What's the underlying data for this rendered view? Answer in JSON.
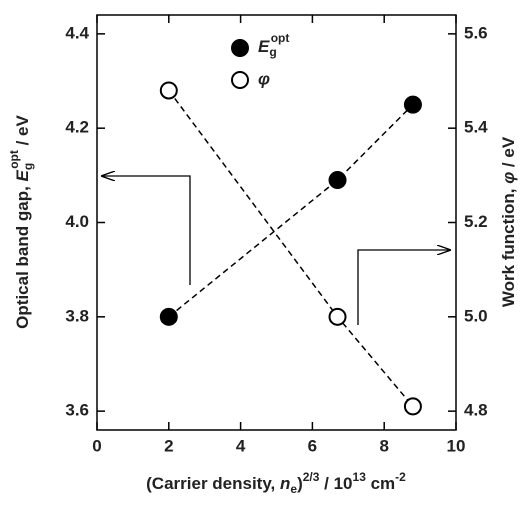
{
  "chart_data": {
    "type": "scatter",
    "xlabel": [
      "(Carrier density, ",
      "n",
      "e",
      ")",
      "2/3",
      " / 10",
      "13",
      " cm",
      "-2"
    ],
    "ylabel": [
      "Optical band gap, ",
      "E",
      "g",
      "opt",
      " / eV"
    ],
    "y2label": [
      "Work function, ",
      "φ",
      " / eV"
    ],
    "x": [
      2,
      6.7,
      8.8
    ],
    "series": [
      {
        "name": "E",
        "name_sub": "g",
        "name_sup": "opt",
        "color": "#000000",
        "filled": true,
        "values": [
          3.8,
          4.09,
          4.25
        ]
      },
      {
        "name": "φ",
        "color": "#000000",
        "filled": false,
        "axis": "y2",
        "values": [
          5.48,
          5.0,
          4.81
        ]
      }
    ],
    "xlim": [
      0,
      10
    ],
    "xticks": [
      0,
      2,
      4,
      6,
      8,
      10
    ],
    "ylim": [
      3.56,
      4.44
    ],
    "yticks": [
      3.6,
      3.8,
      {
        "value": 4,
        "label": "4.0"
      },
      4.2,
      4.4
    ],
    "y2lim": [
      4.76,
      5.64
    ],
    "y2ticks": [
      4.8,
      {
        "value": 5,
        "label": "5.0"
      },
      5.2,
      5.4,
      5.6
    ],
    "line_style": "dashed"
  }
}
